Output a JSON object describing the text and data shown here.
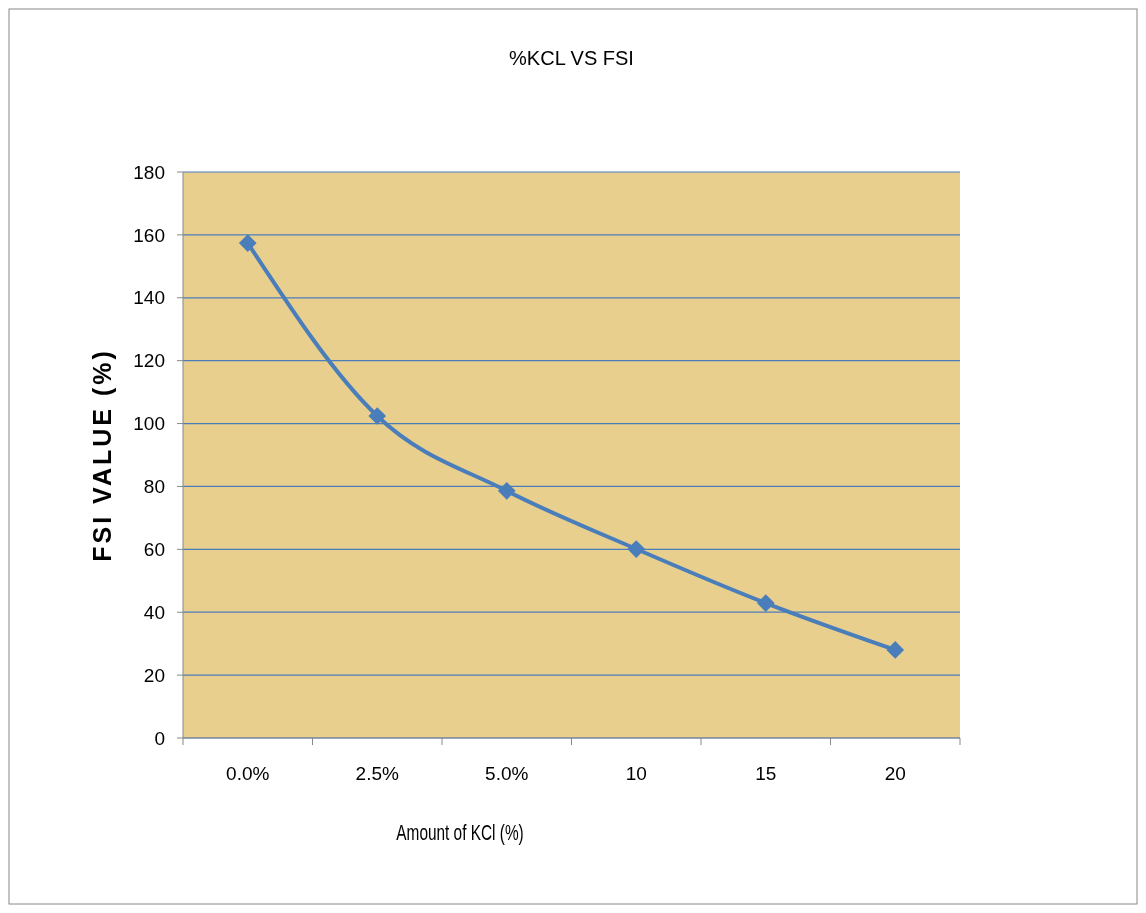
{
  "chart_data": {
    "type": "line",
    "title": "%KCL VS FSI",
    "xlabel": "Amount of KCl (%)",
    "ylabel": "FSI VALUE (%)",
    "categories": [
      "0.0%",
      "2.5%",
      "5.0%",
      "10",
      "15",
      "20"
    ],
    "series": [
      {
        "color": "#4a7ebb",
        "values": [
          157.4,
          102.4,
          78.6,
          60.1,
          42.9,
          28.0
        ]
      }
    ],
    "ylim": [
      0,
      180
    ],
    "yticks": [
      0,
      20,
      40,
      60,
      80,
      100,
      120,
      140,
      160,
      180
    ],
    "grid": "y",
    "marker": "diamond",
    "line_style": "solid"
  }
}
